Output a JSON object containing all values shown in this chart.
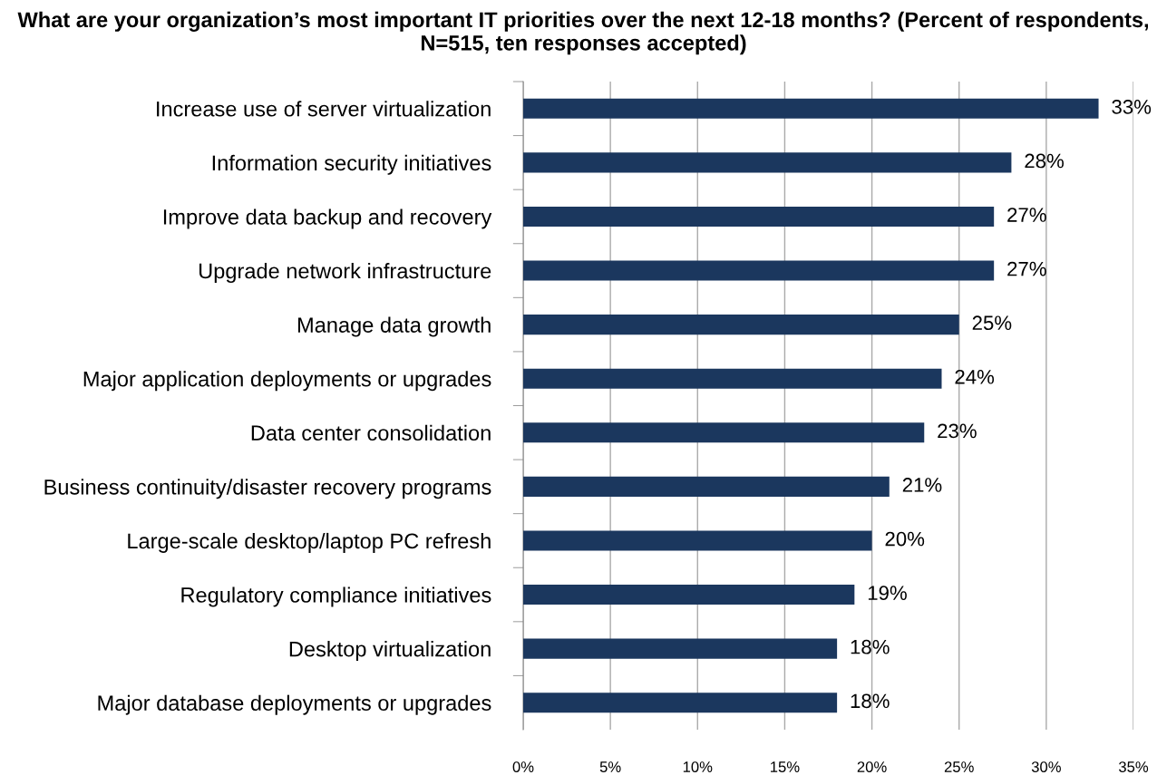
{
  "chart_data": {
    "type": "bar",
    "orientation": "horizontal",
    "title": "What are your organization’s most important IT priorities over the next 12-18 months? (Percent of respondents, N=515, ten responses accepted)",
    "categories": [
      "Increase use of server virtualization",
      "Information security initiatives",
      "Improve data backup and recovery",
      "Upgrade network infrastructure",
      "Manage data growth",
      "Major application deployments or upgrades",
      "Data center consolidation",
      "Business continuity/disaster recovery programs",
      "Large-scale desktop/laptop PC refresh",
      "Regulatory compliance initiatives",
      "Desktop virtualization",
      "Major database deployments or upgrades"
    ],
    "values": [
      33,
      28,
      27,
      27,
      25,
      24,
      23,
      21,
      20,
      19,
      18,
      18
    ],
    "value_labels": [
      "33%",
      "28%",
      "27%",
      "27%",
      "25%",
      "24%",
      "23%",
      "21%",
      "20%",
      "19%",
      "18%",
      "18%"
    ],
    "color": "#1b375e",
    "xlim": [
      0,
      35
    ],
    "xticks": [
      {
        "value": 0,
        "label": "0%"
      },
      {
        "value": 5,
        "label": "5%"
      },
      {
        "value": 10,
        "label": "10%"
      },
      {
        "value": 15,
        "label": "15%"
      },
      {
        "value": 20,
        "label": "20%"
      },
      {
        "value": 25,
        "label": "25%"
      },
      {
        "value": 30,
        "label": "30%"
      },
      {
        "value": 35,
        "label": "35%"
      }
    ],
    "grid": "x"
  }
}
